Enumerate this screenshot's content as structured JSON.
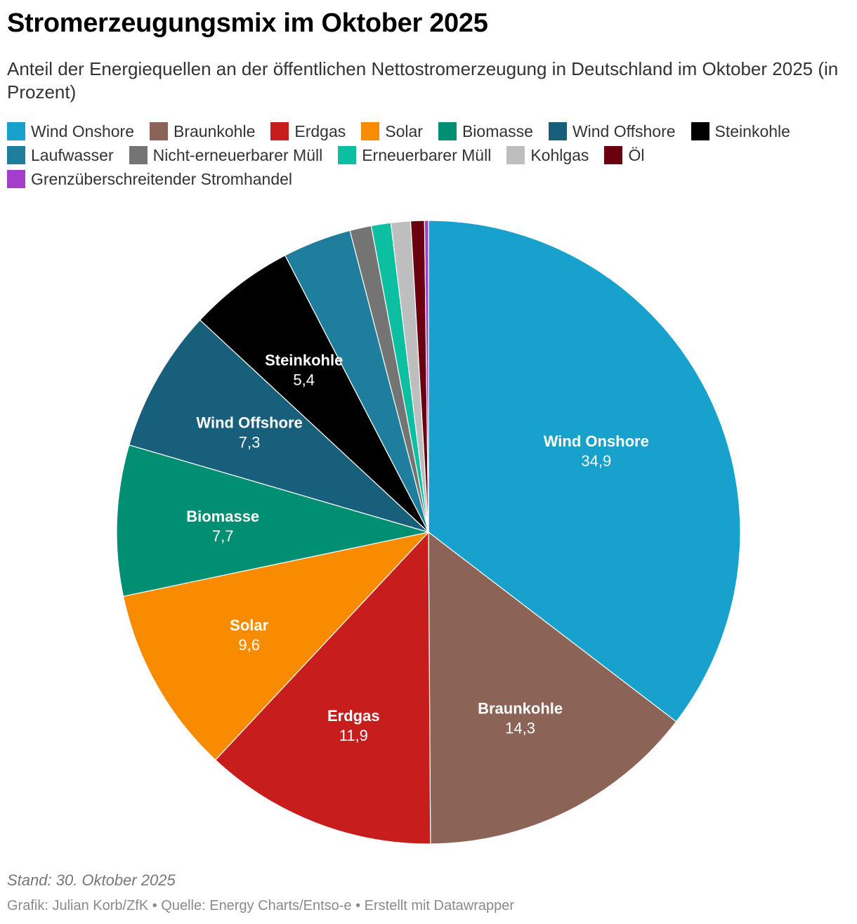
{
  "header": {
    "title": "Stromerzeugungsmix im Oktober 2025",
    "subtitle": "Anteil der Energiequellen an der öffentlichen Nettostromerzeugung in Deutschland im Oktober 2025 (in Prozent)"
  },
  "footer": {
    "note": "Stand: 30. Oktober 2025",
    "credits": "Grafik: Julian Korb/ZfK • Quelle: Energy Charts/Entso-e • Erstellt mit Datawrapper"
  },
  "chart_data": {
    "type": "pie",
    "title": "Stromerzeugungsmix im Oktober 2025",
    "subtitle": "Anteil der Energiequellen an der öffentlichen Nettostromerzeugung in Deutschland im Oktober 2025 (in Prozent)",
    "legend_position": "top",
    "slices": [
      {
        "name": "Wind Onshore",
        "value": 34.9,
        "label": "34,9",
        "color": "#18a1cd",
        "show_label": true
      },
      {
        "name": "Braunkohle",
        "value": 14.3,
        "label": "14,3",
        "color": "#8b6457",
        "show_label": true
      },
      {
        "name": "Erdgas",
        "value": 11.9,
        "label": "11,9",
        "color": "#c71e1d",
        "show_label": true
      },
      {
        "name": "Solar",
        "value": 9.6,
        "label": "9,6",
        "color": "#f98b00",
        "show_label": true
      },
      {
        "name": "Biomasse",
        "value": 7.7,
        "label": "7,7",
        "color": "#008f72",
        "show_label": true
      },
      {
        "name": "Wind Offshore",
        "value": 7.3,
        "label": "7,3",
        "color": "#175f7a",
        "show_label": true
      },
      {
        "name": "Steinkohle",
        "value": 5.4,
        "label": "5,4",
        "color": "#000000",
        "show_label": true
      },
      {
        "name": "Laufwasser",
        "value": 3.5,
        "label": "3,5",
        "color": "#1f7e9e",
        "show_label": false
      },
      {
        "name": "Nicht-erneuerbarer Müll",
        "value": 1.1,
        "label": "1,1",
        "color": "#747474",
        "show_label": false
      },
      {
        "name": "Erneuerbarer Müll",
        "value": 1.0,
        "label": "1,0",
        "color": "#0bbfa0",
        "show_label": false
      },
      {
        "name": "Kohlgas",
        "value": 1.0,
        "label": "1,0",
        "color": "#bebebe",
        "show_label": false
      },
      {
        "name": "Öl",
        "value": 0.7,
        "label": "0,7",
        "color": "#6a000f",
        "show_label": false
      },
      {
        "name": "Grenzüberschreitender Stromhandel",
        "value": 0.2,
        "label": "0,2",
        "color": "#a23eca",
        "show_label": false
      }
    ]
  }
}
